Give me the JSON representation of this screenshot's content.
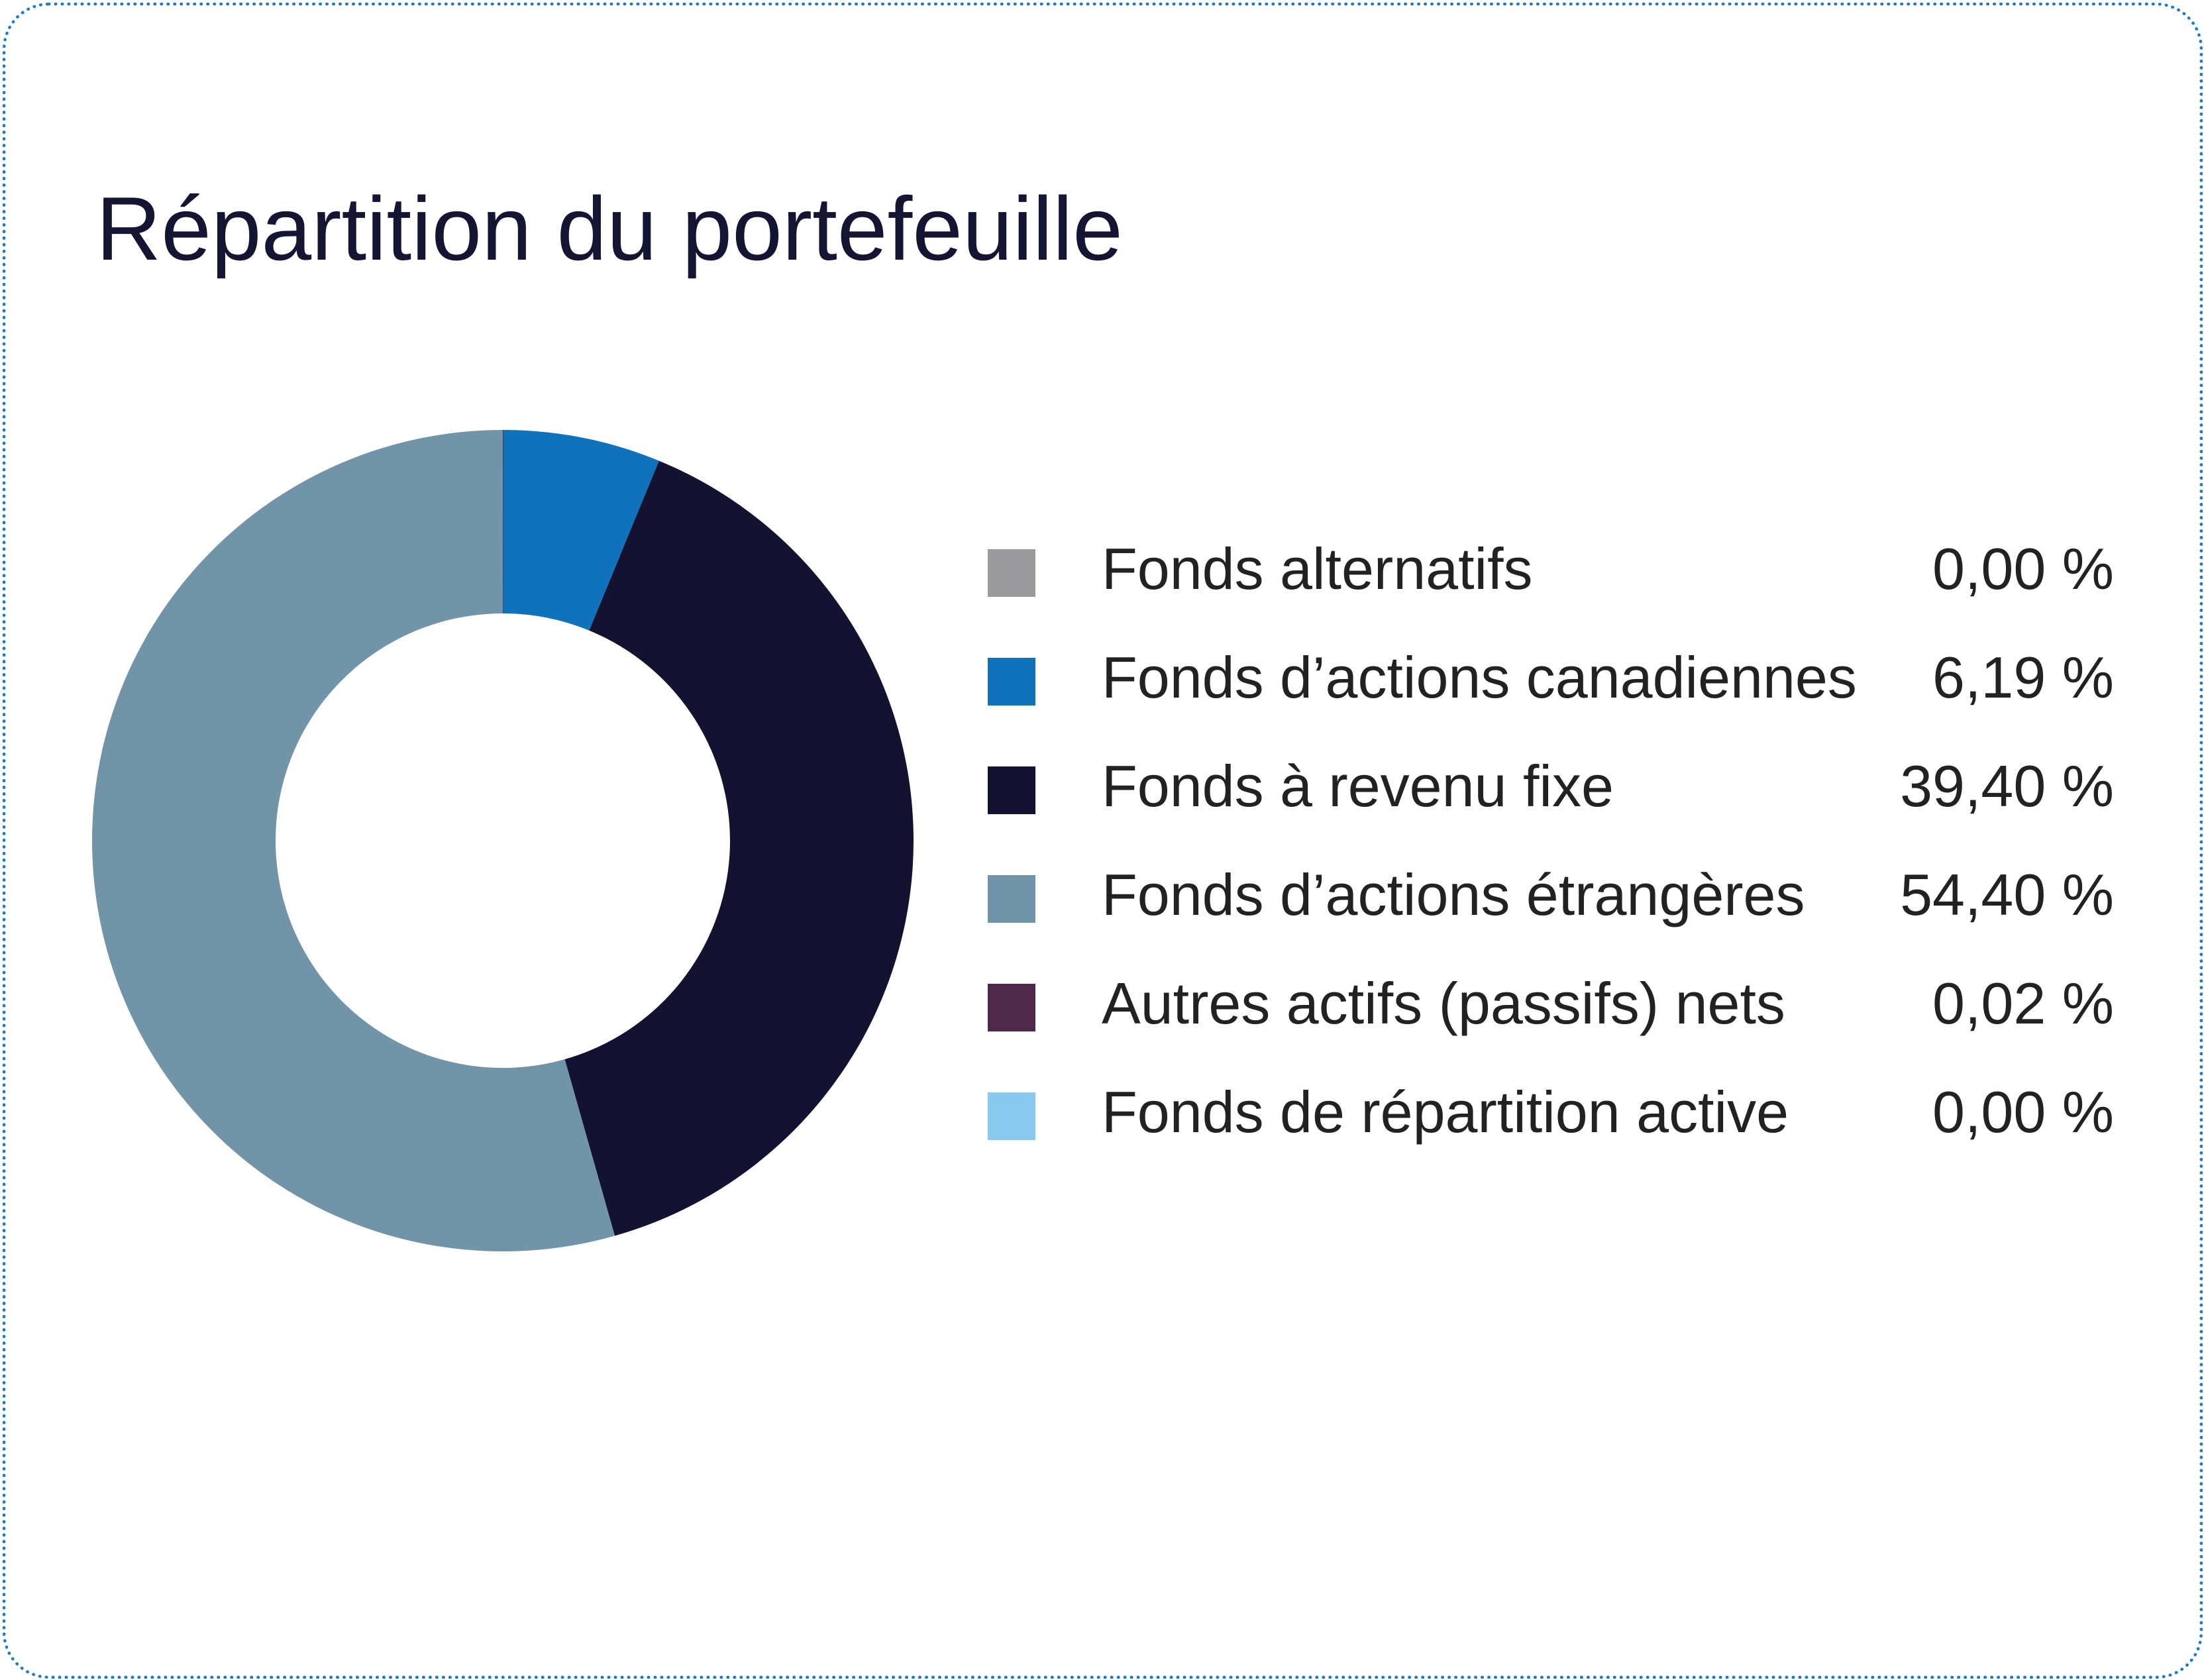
{
  "chart_data": {
    "type": "pie",
    "style": "donut",
    "title": "Répartition du portefeuille",
    "legend_position": "right",
    "slices": [
      {
        "label": "Fonds alternatifs",
        "value": 0.0,
        "display": "0,00 %",
        "color": "#9b9b9d"
      },
      {
        "label": "Fonds d’actions canadiennes",
        "value": 6.19,
        "display": "6,19 %",
        "color": "#0f72bb"
      },
      {
        "label": "Fonds à revenu fixe",
        "value": 39.4,
        "display": "39,40 %",
        "color": "#131230"
      },
      {
        "label": "Fonds d’actions étrangères",
        "value": 54.4,
        "display": "54,40 %",
        "color": "#7194a9"
      },
      {
        "label": "Autres actifs (passifs) nets",
        "value": 0.02,
        "display": "0,02 %",
        "color": "#4e2a48"
      },
      {
        "label": "Fonds de répartition active",
        "value": 0.0,
        "display": "0,00 %",
        "color": "#87c9ef"
      }
    ]
  },
  "colors": {
    "border": "#1f7ac4",
    "title_text": "#141433",
    "body_text": "#222222"
  }
}
